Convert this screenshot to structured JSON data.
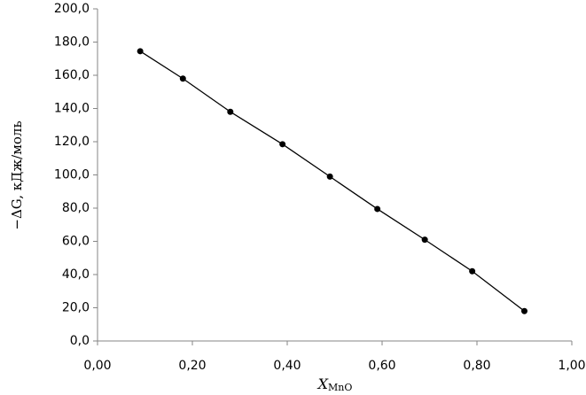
{
  "chart_data": {
    "type": "line",
    "xlabel": "X",
    "xlabel_sub": "MnO",
    "ylabel": "−ΔG, кДж/моль",
    "x": [
      0.09,
      0.18,
      0.28,
      0.39,
      0.49,
      0.59,
      0.69,
      0.79,
      0.9
    ],
    "values": [
      174.5,
      158,
      138,
      118.5,
      99,
      79.5,
      61,
      42,
      18
    ],
    "color": "#000000",
    "xlim": [
      0,
      1
    ],
    "xticks": [
      {
        "value": 0,
        "label": "0,00"
      },
      {
        "value": 0.2,
        "label": "0,20"
      },
      {
        "value": 0.4,
        "label": "0,40"
      },
      {
        "value": 0.6,
        "label": "0,60"
      },
      {
        "value": 0.8,
        "label": "0,80"
      },
      {
        "value": 1,
        "label": "1,00"
      }
    ],
    "ylim": [
      0,
      200
    ],
    "yticks": [
      {
        "value": 0,
        "label": "0,0"
      },
      {
        "value": 20,
        "label": "20,0"
      },
      {
        "value": 40,
        "label": "40,0"
      },
      {
        "value": 60,
        "label": "60,0"
      },
      {
        "value": 80,
        "label": "80,0"
      },
      {
        "value": 100,
        "label": "100,0"
      },
      {
        "value": 120,
        "label": "120,0"
      },
      {
        "value": 140,
        "label": "140,0"
      },
      {
        "value": 160,
        "label": "160,0"
      },
      {
        "value": 180,
        "label": "180,0"
      },
      {
        "value": 200,
        "label": "200,0"
      }
    ],
    "grid": false
  }
}
